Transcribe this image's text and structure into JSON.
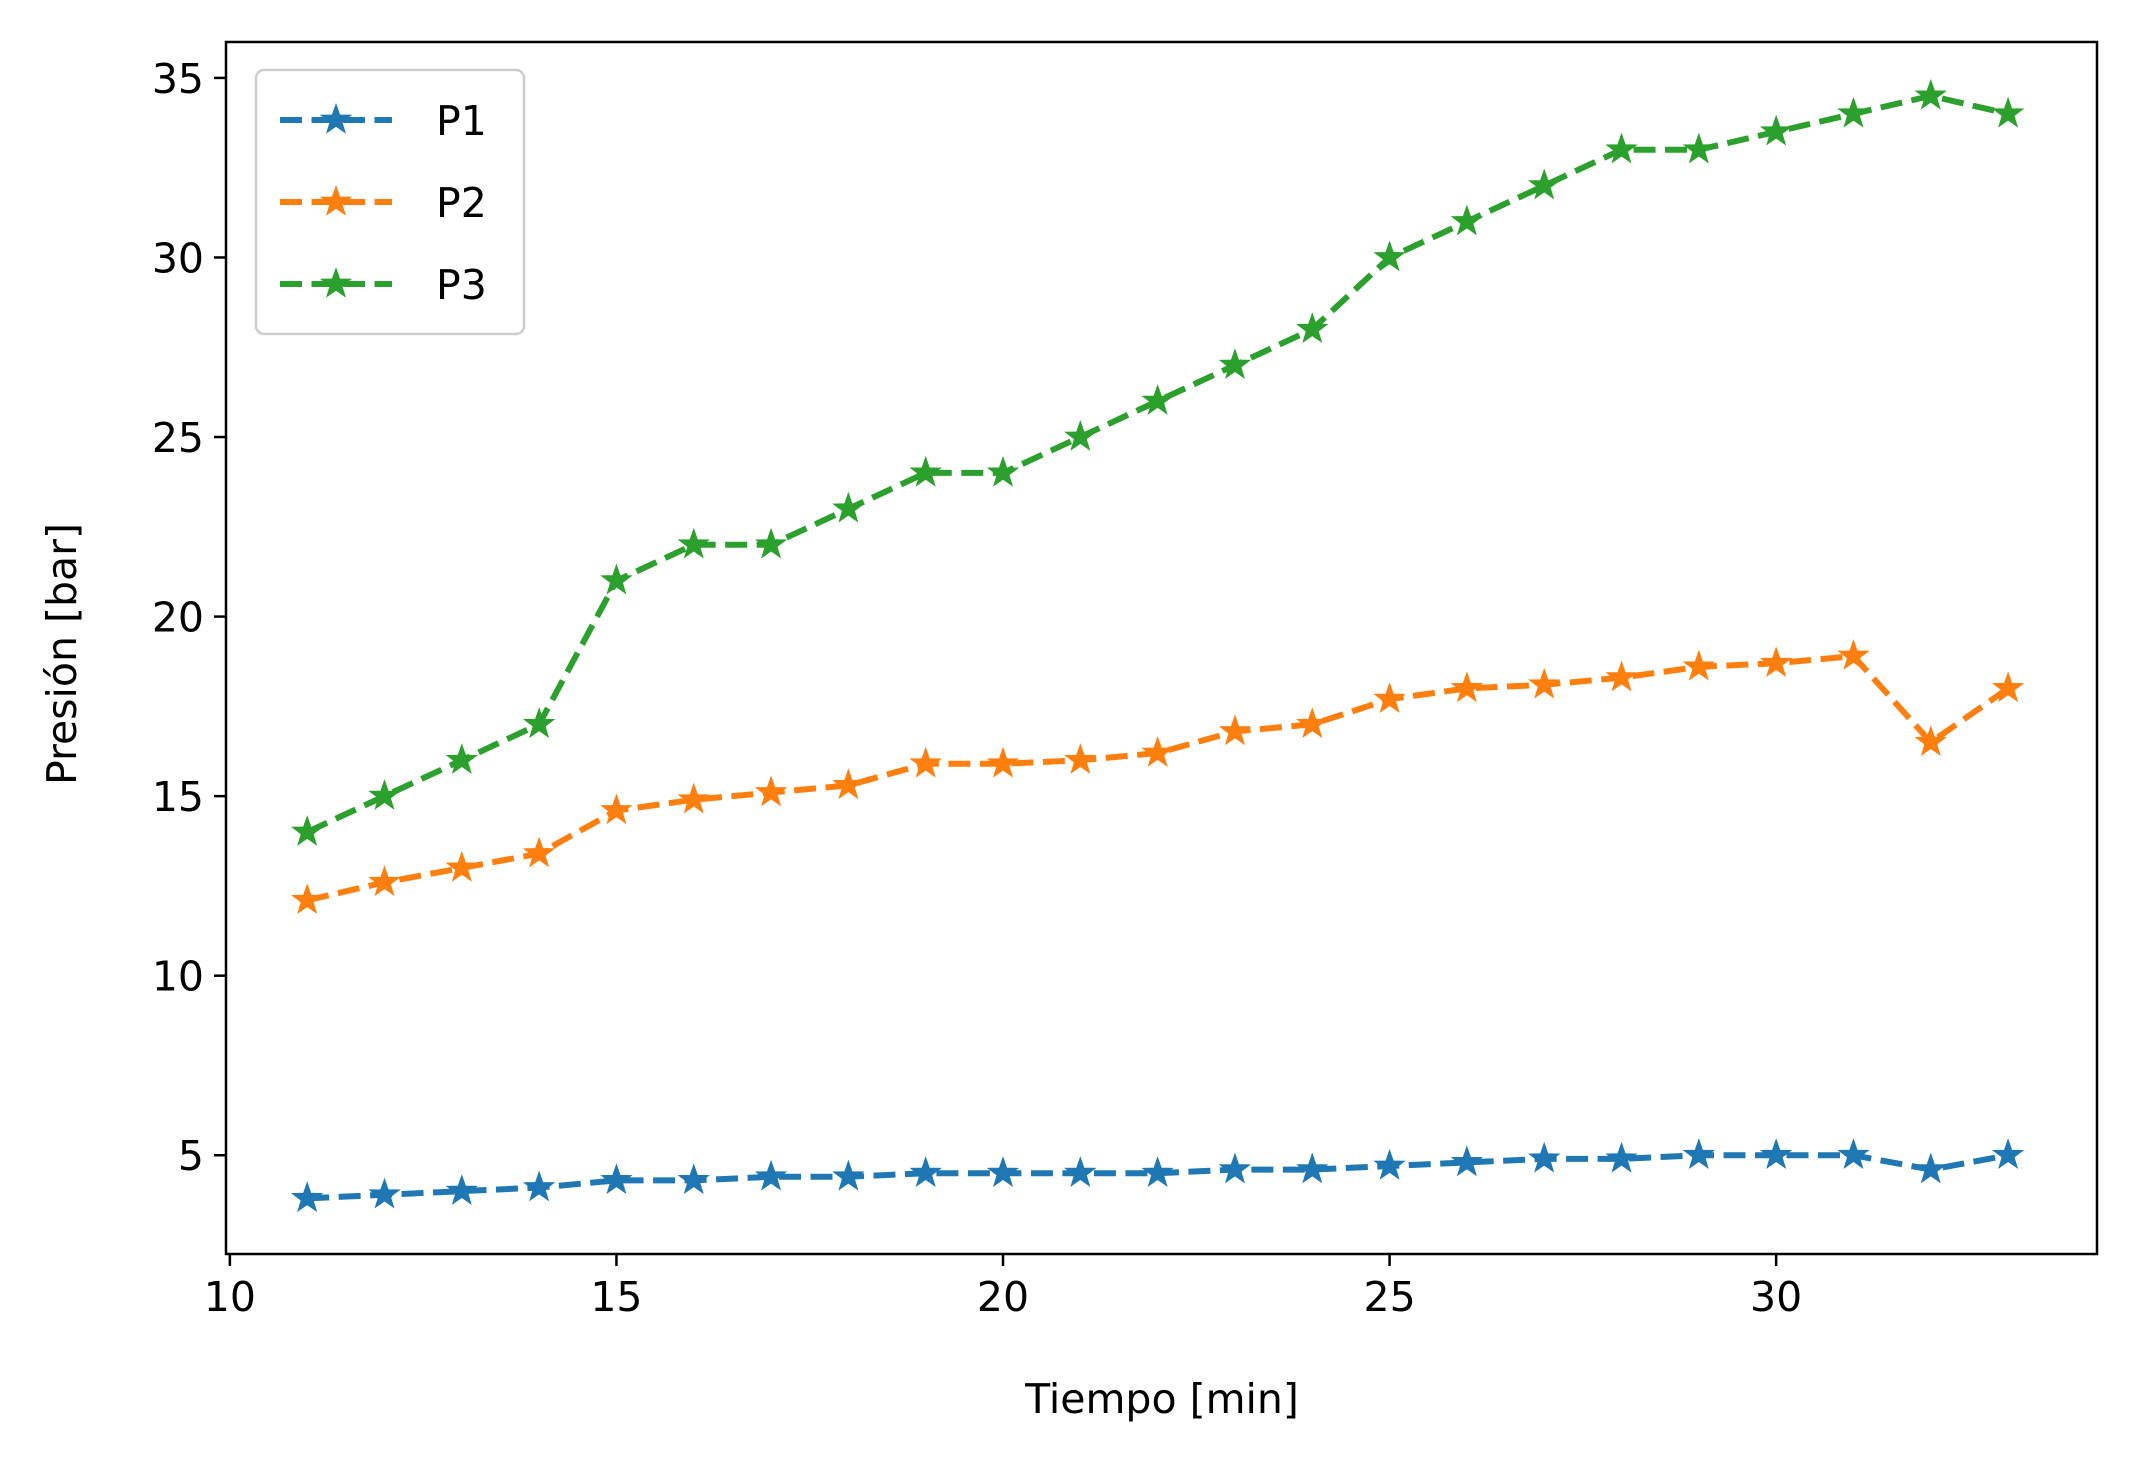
{
  "chart_data": {
    "type": "line",
    "title": "",
    "xlabel": "Tiempo [min]",
    "ylabel": "Presión [bar]",
    "xlim": [
      9.95,
      34.15
    ],
    "ylim": [
      2.25,
      36.0
    ],
    "xticks": [
      10,
      15,
      20,
      25,
      30
    ],
    "yticks": [
      5,
      10,
      15,
      20,
      25,
      30,
      35
    ],
    "grid": false,
    "legend_position": "top-left",
    "line_style": "dashed",
    "marker": "star",
    "x": [
      11,
      12,
      13,
      14,
      15,
      16,
      17,
      18,
      19,
      20,
      21,
      22,
      23,
      24,
      25,
      26,
      27,
      28,
      29,
      30,
      31,
      32,
      33
    ],
    "series": [
      {
        "name": "P1",
        "color": "#1f77b4",
        "values": [
          3.8,
          3.9,
          4.0,
          4.1,
          4.3,
          4.3,
          4.4,
          4.4,
          4.5,
          4.5,
          4.5,
          4.5,
          4.6,
          4.6,
          4.7,
          4.8,
          4.9,
          4.9,
          5.0,
          5.0,
          5.0,
          4.6,
          5.0
        ]
      },
      {
        "name": "P2",
        "color": "#ff7f0e",
        "values": [
          12.1,
          12.6,
          13.0,
          13.4,
          14.6,
          14.9,
          15.1,
          15.3,
          15.9,
          15.9,
          16.0,
          16.2,
          16.8,
          17.0,
          17.7,
          18.0,
          18.1,
          18.3,
          18.6,
          18.7,
          18.9,
          16.5,
          18.0
        ]
      },
      {
        "name": "P3",
        "color": "#2ca02c",
        "values": [
          14.0,
          15.0,
          16.0,
          17.0,
          21.0,
          22.0,
          22.0,
          23.0,
          24.0,
          24.0,
          25.0,
          26.0,
          27.0,
          28.0,
          30.0,
          31.0,
          32.0,
          33.0,
          33.0,
          33.5,
          34.0,
          34.5,
          34.0
        ]
      }
    ]
  }
}
